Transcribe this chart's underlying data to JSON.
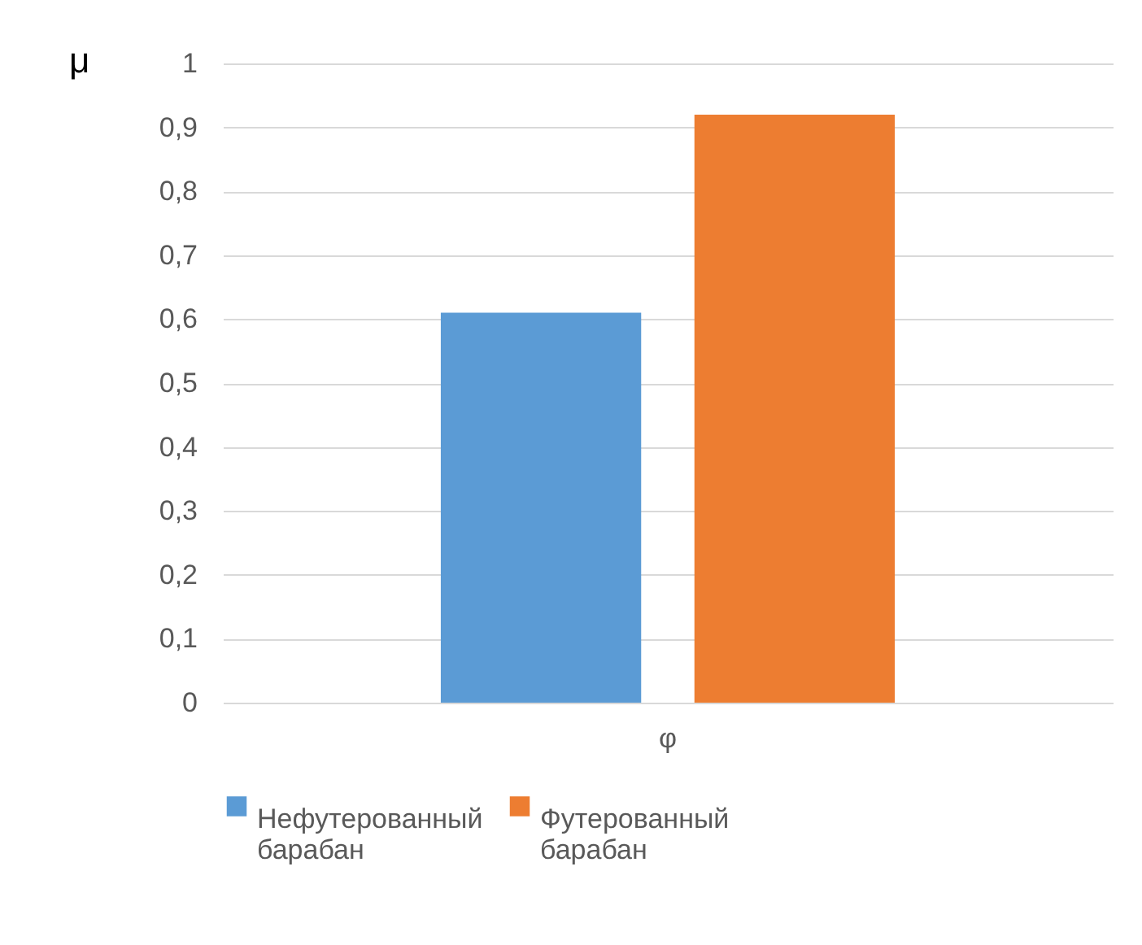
{
  "chart_data": {
    "type": "bar",
    "ylabel": "μ",
    "categories": [
      "φ"
    ],
    "series": [
      {
        "name": "Нефутерованный барабан",
        "color": "#5b9bd5",
        "values": [
          0.61
        ]
      },
      {
        "name": "Футерованный барабан",
        "color": "#ed7d31",
        "values": [
          0.92
        ]
      }
    ],
    "ylim": [
      0,
      1
    ],
    "yticks": [
      0,
      {
        "value": 0.1,
        "label": "0,1"
      },
      {
        "value": 0.2,
        "label": "0,2"
      },
      {
        "value": 0.3,
        "label": "0,3"
      },
      {
        "value": 0.4,
        "label": "0,4"
      },
      {
        "value": 0.5,
        "label": "0,5"
      },
      {
        "value": 0.6,
        "label": "0,6"
      },
      {
        "value": 0.7,
        "label": "0,7"
      },
      {
        "value": 0.8,
        "label": "0,8"
      },
      {
        "value": 0.9,
        "label": "0,9"
      },
      1
    ],
    "grid": "y",
    "legend": "bottom"
  }
}
